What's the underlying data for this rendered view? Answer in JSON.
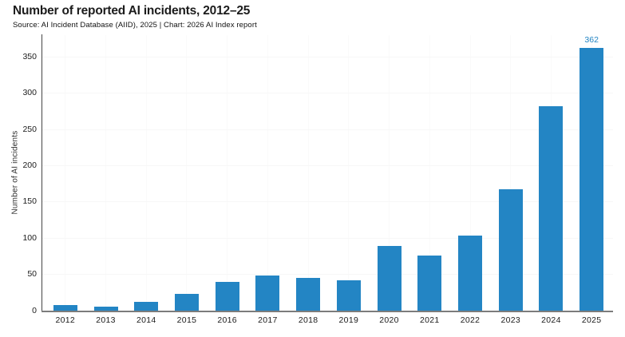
{
  "header": {
    "title": "Number of reported AI incidents, 2012–25",
    "subtitle": "Source: AI Incident Database (AIID), 2025 | Chart: 2026 AI Index report"
  },
  "chart_data": {
    "type": "bar",
    "title": "Number of reported AI incidents, 2012–25",
    "categories": [
      "2012",
      "2013",
      "2014",
      "2015",
      "2016",
      "2017",
      "2018",
      "2019",
      "2020",
      "2021",
      "2022",
      "2023",
      "2024",
      "2025"
    ],
    "values": [
      8,
      6,
      12,
      23,
      40,
      49,
      45,
      42,
      89,
      76,
      104,
      167,
      282,
      362
    ],
    "xlabel": "",
    "ylabel": "Number of AI incidents",
    "ylim": [
      0,
      380
    ],
    "yticks": [
      0,
      50,
      100,
      150,
      200,
      250,
      300,
      350
    ],
    "grid": "faint",
    "legend": "none",
    "annotations": [
      {
        "category": "2025",
        "text": "362"
      }
    ]
  },
  "colors": {
    "bar": "#2385c4",
    "annotation": "#2385c4",
    "axis_left": "#454545",
    "axis_bottom": "#7c7c7c",
    "gridline_h": "#f7f7f7",
    "gridline_v": "#fafafa"
  }
}
